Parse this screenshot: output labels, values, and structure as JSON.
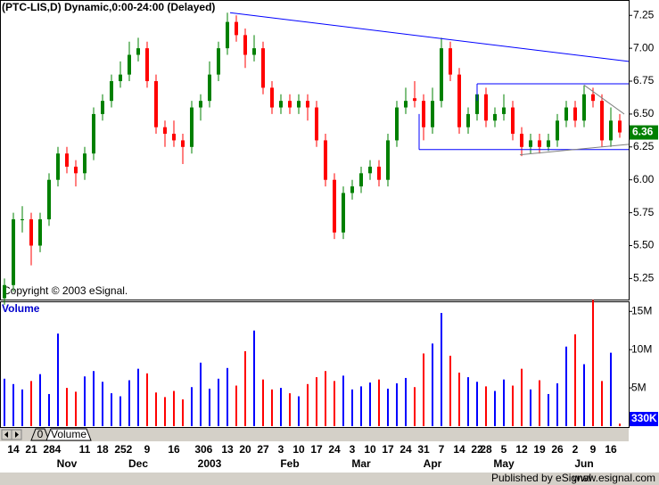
{
  "chart_data": {
    "type": "candlestick",
    "title": "(PTC-LIS,D) Dynamic,0:00-24:00 (Delayed)",
    "copyright": "Copyright © 2003 eSignal.",
    "volume_title": "Volume",
    "tab_label": "Volume",
    "tab_number": "0",
    "footer_left": "Published by eSignal",
    "footer_right": "www.esignal.com",
    "up_color": "#008000",
    "down_color": "#ff0000",
    "volume_up_color": "#0000ff",
    "volume_down_color": "#ff0000",
    "ylim": [
      5.09,
      7.36
    ],
    "yticks": [
      5.25,
      {
        "value": 5.5,
        "label": "5.50"
      },
      5.75,
      {
        "value": 6,
        "label": "6.00"
      },
      6.25,
      {
        "value": 6.5,
        "label": "6.50"
      },
      6.75,
      {
        "value": 7,
        "label": "7.00"
      },
      7.25
    ],
    "volume_ylim": [
      0,
      16200000
    ],
    "volume_ticks": [
      {
        "value": 5000000,
        "label": "5M"
      },
      {
        "value": 10000000,
        "label": "10M"
      },
      {
        "value": 15000000,
        "label": "15M"
      }
    ],
    "last_volume": {
      "value": 330000,
      "label": "330K"
    },
    "categories": [
      null,
      "14",
      null,
      "21",
      null,
      "28",
      "4",
      null,
      null,
      "11",
      null,
      "18",
      null,
      "25",
      "2",
      null,
      "9",
      null,
      null,
      "16",
      null,
      null,
      "30",
      "6",
      null,
      "13",
      null,
      "20",
      null,
      "27",
      null,
      "3",
      null,
      "10",
      null,
      "17",
      null,
      "24",
      null,
      "3",
      null,
      "10",
      null,
      "17",
      null,
      "24",
      null,
      "31",
      null,
      "7",
      null,
      "14",
      null,
      "22",
      "28",
      null,
      "5",
      null,
      "12",
      null,
      "19",
      null,
      "26",
      null,
      "2",
      null,
      "9",
      null,
      "16",
      null
    ],
    "months": [
      null,
      null,
      null,
      null,
      null,
      null,
      null,
      "Nov",
      null,
      null,
      null,
      null,
      null,
      null,
      null,
      "Dec",
      null,
      null,
      null,
      null,
      null,
      null,
      null,
      "2003",
      null,
      null,
      null,
      null,
      null,
      null,
      null,
      null,
      "Feb",
      null,
      null,
      null,
      null,
      null,
      null,
      null,
      "Mar",
      null,
      null,
      null,
      null,
      null,
      null,
      null,
      "Apr",
      null,
      null,
      null,
      null,
      null,
      null,
      null,
      "May",
      null,
      null,
      null,
      null,
      null,
      null,
      null,
      null,
      "Jun",
      null,
      null,
      null,
      null
    ],
    "ohlc": [
      [
        5.1,
        5.25,
        5.05,
        5.2
      ],
      [
        5.2,
        5.75,
        5.15,
        5.7
      ],
      [
        5.7,
        5.8,
        5.6,
        5.7
      ],
      [
        5.7,
        5.75,
        5.35,
        5.5
      ],
      [
        5.5,
        5.75,
        5.45,
        5.7
      ],
      [
        5.7,
        6.05,
        5.65,
        6.0
      ],
      [
        6.0,
        6.25,
        5.95,
        6.2
      ],
      [
        6.2,
        6.25,
        6.05,
        6.1
      ],
      [
        6.1,
        6.15,
        5.95,
        6.05
      ],
      [
        6.05,
        6.25,
        6.0,
        6.2
      ],
      [
        6.2,
        6.55,
        6.15,
        6.5
      ],
      [
        6.5,
        6.65,
        6.45,
        6.6
      ],
      [
        6.6,
        6.8,
        6.55,
        6.75
      ],
      [
        6.75,
        6.9,
        6.7,
        6.8
      ],
      [
        6.8,
        7.05,
        6.75,
        6.95
      ],
      [
        6.95,
        7.08,
        6.9,
        7.0
      ],
      [
        7.0,
        7.05,
        6.7,
        6.75
      ],
      [
        6.75,
        6.8,
        6.35,
        6.4
      ],
      [
        6.4,
        6.45,
        6.25,
        6.35
      ],
      [
        6.35,
        6.45,
        6.25,
        6.3
      ],
      [
        6.3,
        6.35,
        6.12,
        6.25
      ],
      [
        6.25,
        6.6,
        6.2,
        6.55
      ],
      [
        6.55,
        6.65,
        6.45,
        6.6
      ],
      [
        6.6,
        6.9,
        6.55,
        6.8
      ],
      [
        6.8,
        7.05,
        6.75,
        7.0
      ],
      [
        7.0,
        7.27,
        6.95,
        7.2
      ],
      [
        7.2,
        7.25,
        7.05,
        7.1
      ],
      [
        7.1,
        7.15,
        6.85,
        6.95
      ],
      [
        6.95,
        7.1,
        6.9,
        7.0
      ],
      [
        7.0,
        7.05,
        6.65,
        6.7
      ],
      [
        6.7,
        6.75,
        6.5,
        6.55
      ],
      [
        6.55,
        6.65,
        6.5,
        6.6
      ],
      [
        6.6,
        6.65,
        6.5,
        6.55
      ],
      [
        6.55,
        6.65,
        6.5,
        6.6
      ],
      [
        6.6,
        6.65,
        6.45,
        6.55
      ],
      [
        6.55,
        6.6,
        6.25,
        6.3
      ],
      [
        6.3,
        6.35,
        5.95,
        6.0
      ],
      [
        6.0,
        6.05,
        5.55,
        5.6
      ],
      [
        5.6,
        5.95,
        5.55,
        5.9
      ],
      [
        5.9,
        6.0,
        5.85,
        5.95
      ],
      [
        5.95,
        6.1,
        5.9,
        6.05
      ],
      [
        6.05,
        6.15,
        6.0,
        6.1
      ],
      [
        6.1,
        6.15,
        5.95,
        6.0
      ],
      [
        6.0,
        6.35,
        5.95,
        6.3
      ],
      [
        6.3,
        6.6,
        6.25,
        6.55
      ],
      [
        6.55,
        6.7,
        6.5,
        6.6
      ],
      [
        6.62,
        6.75,
        6.55,
        6.6
      ],
      [
        6.6,
        6.65,
        6.3,
        6.4
      ],
      [
        6.4,
        6.7,
        6.35,
        6.6
      ],
      [
        6.6,
        7.08,
        6.55,
        7.0
      ],
      [
        7.0,
        7.05,
        6.75,
        6.8
      ],
      [
        6.8,
        6.85,
        6.35,
        6.4
      ],
      [
        6.4,
        6.55,
        6.35,
        6.5
      ],
      [
        6.5,
        6.72,
        6.45,
        6.65
      ],
      [
        6.65,
        6.7,
        6.4,
        6.45
      ],
      [
        6.45,
        6.55,
        6.4,
        6.5
      ],
      [
        6.5,
        6.65,
        6.45,
        6.55
      ],
      [
        6.55,
        6.6,
        6.3,
        6.35
      ],
      [
        6.35,
        6.4,
        6.18,
        6.25
      ],
      [
        6.25,
        6.35,
        6.2,
        6.3
      ],
      [
        6.3,
        6.35,
        6.2,
        6.25
      ],
      [
        6.25,
        6.35,
        6.22,
        6.3
      ],
      [
        6.3,
        6.5,
        6.25,
        6.45
      ],
      [
        6.45,
        6.6,
        6.4,
        6.55
      ],
      [
        6.55,
        6.6,
        6.4,
        6.45
      ],
      [
        6.45,
        6.72,
        6.4,
        6.65
      ],
      [
        6.65,
        6.7,
        6.55,
        6.6
      ],
      [
        6.6,
        6.65,
        6.25,
        6.3
      ],
      [
        6.3,
        6.55,
        6.25,
        6.45
      ],
      [
        6.45,
        6.5,
        6.32,
        6.36
      ]
    ],
    "volume": [
      6200000,
      5500000,
      4800000,
      5900000,
      6800000,
      4200000,
      12100000,
      5000000,
      4500000,
      6500000,
      7200000,
      5800000,
      4300000,
      3900000,
      6000000,
      7500000,
      6900000,
      4400000,
      3800000,
      4600000,
      3500000,
      5100000,
      8300000,
      4900000,
      6200000,
      7600000,
      5300000,
      9800000,
      12500000,
      6100000,
      4800000,
      5000000,
      4300000,
      3900000,
      5500000,
      6400000,
      7200000,
      5900000,
      6600000,
      4800000,
      5200000,
      5700000,
      6100000,
      4900000,
      5600000,
      6300000,
      5100000,
      9500000,
      10800000,
      14800000,
      9200000,
      7000000,
      6400000,
      5800000,
      5200000,
      4600000,
      6100000,
      5300000,
      7500000,
      4800000,
      6000000,
      4200000,
      5600000,
      10400000,
      12000000,
      8100000,
      16500000,
      5900000,
      9600000,
      330000
    ],
    "trendlines": [
      {
        "color": "#0000ff",
        "points": [
          [
            25.3,
            7.27
          ],
          [
            70,
            6.9
          ]
        ]
      },
      {
        "color": "#0000ff",
        "points": [
          [
            53,
            6.73
          ],
          [
            70,
            6.73
          ]
        ]
      },
      {
        "color": "#0000ff",
        "points": [
          [
            46.5,
            6.23
          ],
          [
            70,
            6.23
          ]
        ]
      },
      {
        "color": "#0000ff",
        "points": [
          [
            46.5,
            6.23
          ],
          [
            46.5,
            6.5
          ]
        ]
      },
      {
        "color": "#0000ff",
        "points": [
          [
            53,
            6.73
          ],
          [
            53,
            6.6
          ]
        ]
      },
      {
        "color": "#808080",
        "points": [
          [
            57.8,
            6.19
          ],
          [
            70,
            6.27
          ]
        ]
      },
      {
        "color": "#808080",
        "points": [
          [
            65,
            6.72
          ],
          [
            69.5,
            6.5
          ]
        ]
      }
    ]
  }
}
